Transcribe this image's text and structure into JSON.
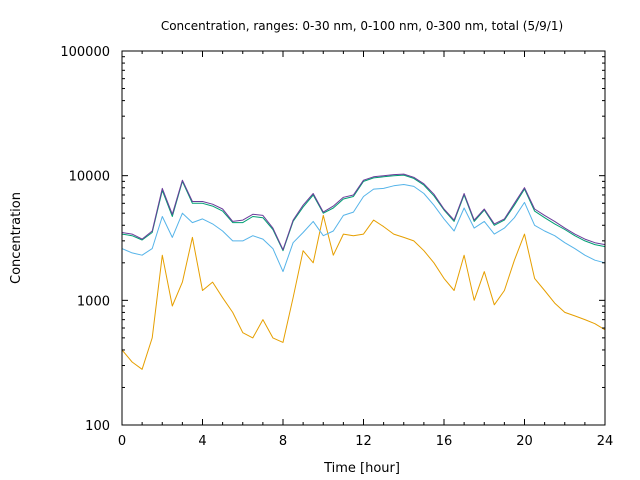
{
  "chart_data": {
    "type": "line",
    "title": "Concentration, ranges: 0-30 nm, 0-100 nm, 0-300 nm, total (5/9/1)",
    "xlabel": "Time [hour]",
    "ylabel": "Concentration",
    "xlim": [
      0,
      24
    ],
    "ylim": [
      100,
      100000
    ],
    "yscale": "log",
    "xticks": [
      0,
      4,
      8,
      12,
      16,
      20,
      24
    ],
    "xtick_labels": [
      "0",
      "4",
      "8",
      "12",
      "16",
      "20",
      "24"
    ],
    "yticks": [
      100,
      1000,
      10000,
      100000
    ],
    "ytick_labels": [
      "100",
      "1000",
      "10000",
      "100000"
    ],
    "grid": false,
    "legend": "none",
    "x": [
      0,
      0.5,
      1,
      1.5,
      2,
      2.5,
      3,
      3.5,
      4,
      4.5,
      5,
      5.5,
      6,
      6.5,
      7,
      7.5,
      8,
      8.5,
      9,
      9.5,
      10,
      10.5,
      11,
      11.5,
      12,
      12.5,
      13,
      13.5,
      14,
      14.5,
      15,
      15.5,
      16,
      16.5,
      17,
      17.5,
      18,
      18.5,
      19,
      19.5,
      20,
      20.5,
      21,
      21.5,
      22,
      22.5,
      23,
      23.5,
      24
    ],
    "series": [
      {
        "color": "#e69f00",
        "values": [
          400,
          320,
          280,
          500,
          2300,
          900,
          1400,
          3200,
          1200,
          1400,
          1050,
          800,
          550,
          500,
          700,
          500,
          460,
          1050,
          2500,
          2000,
          4800,
          2300,
          3400,
          3300,
          3400,
          4400,
          3900,
          3400,
          3200,
          3000,
          2500,
          2000,
          1500,
          1200,
          2300,
          1000,
          1700,
          920,
          1200,
          2100,
          3400,
          1500,
          1200,
          950,
          800,
          750,
          700,
          650,
          580
        ]
      },
      {
        "color": "#56b4e9",
        "values": [
          2600,
          2400,
          2300,
          2600,
          4700,
          3200,
          5000,
          4200,
          4500,
          4100,
          3600,
          3000,
          3000,
          3300,
          3100,
          2600,
          1700,
          2900,
          3500,
          4300,
          3300,
          3600,
          4800,
          5100,
          6800,
          7800,
          7900,
          8300,
          8500,
          8200,
          7200,
          5800,
          4500,
          3600,
          5500,
          3800,
          4300,
          3400,
          3800,
          4600,
          6100,
          4000,
          3600,
          3300,
          2900,
          2600,
          2300,
          2100,
          2000
        ]
      },
      {
        "color": "#009e73",
        "values": [
          3400,
          3300,
          3050,
          3500,
          7600,
          4700,
          9000,
          6000,
          6000,
          5700,
          5200,
          4200,
          4200,
          4700,
          4600,
          3700,
          2500,
          4300,
          5600,
          7000,
          5000,
          5500,
          6500,
          6800,
          9000,
          9600,
          9800,
          10000,
          10100,
          9500,
          8400,
          6900,
          5300,
          4300,
          7000,
          4300,
          5300,
          4000,
          4400,
          5800,
          7800,
          5200,
          4600,
          4100,
          3700,
          3300,
          3000,
          2800,
          2700
        ]
      },
      {
        "color": "#6a3d9a",
        "values": [
          3500,
          3400,
          3100,
          3600,
          7900,
          4900,
          9200,
          6200,
          6200,
          5900,
          5400,
          4300,
          4400,
          4900,
          4800,
          3800,
          2550,
          4400,
          5800,
          7200,
          5100,
          5700,
          6700,
          7000,
          9200,
          9800,
          10000,
          10200,
          10300,
          9700,
          8600,
          7100,
          5400,
          4400,
          7200,
          4400,
          5400,
          4100,
          4500,
          6000,
          8000,
          5400,
          4800,
          4300,
          3800,
          3400,
          3100,
          2900,
          2800
        ]
      }
    ]
  }
}
